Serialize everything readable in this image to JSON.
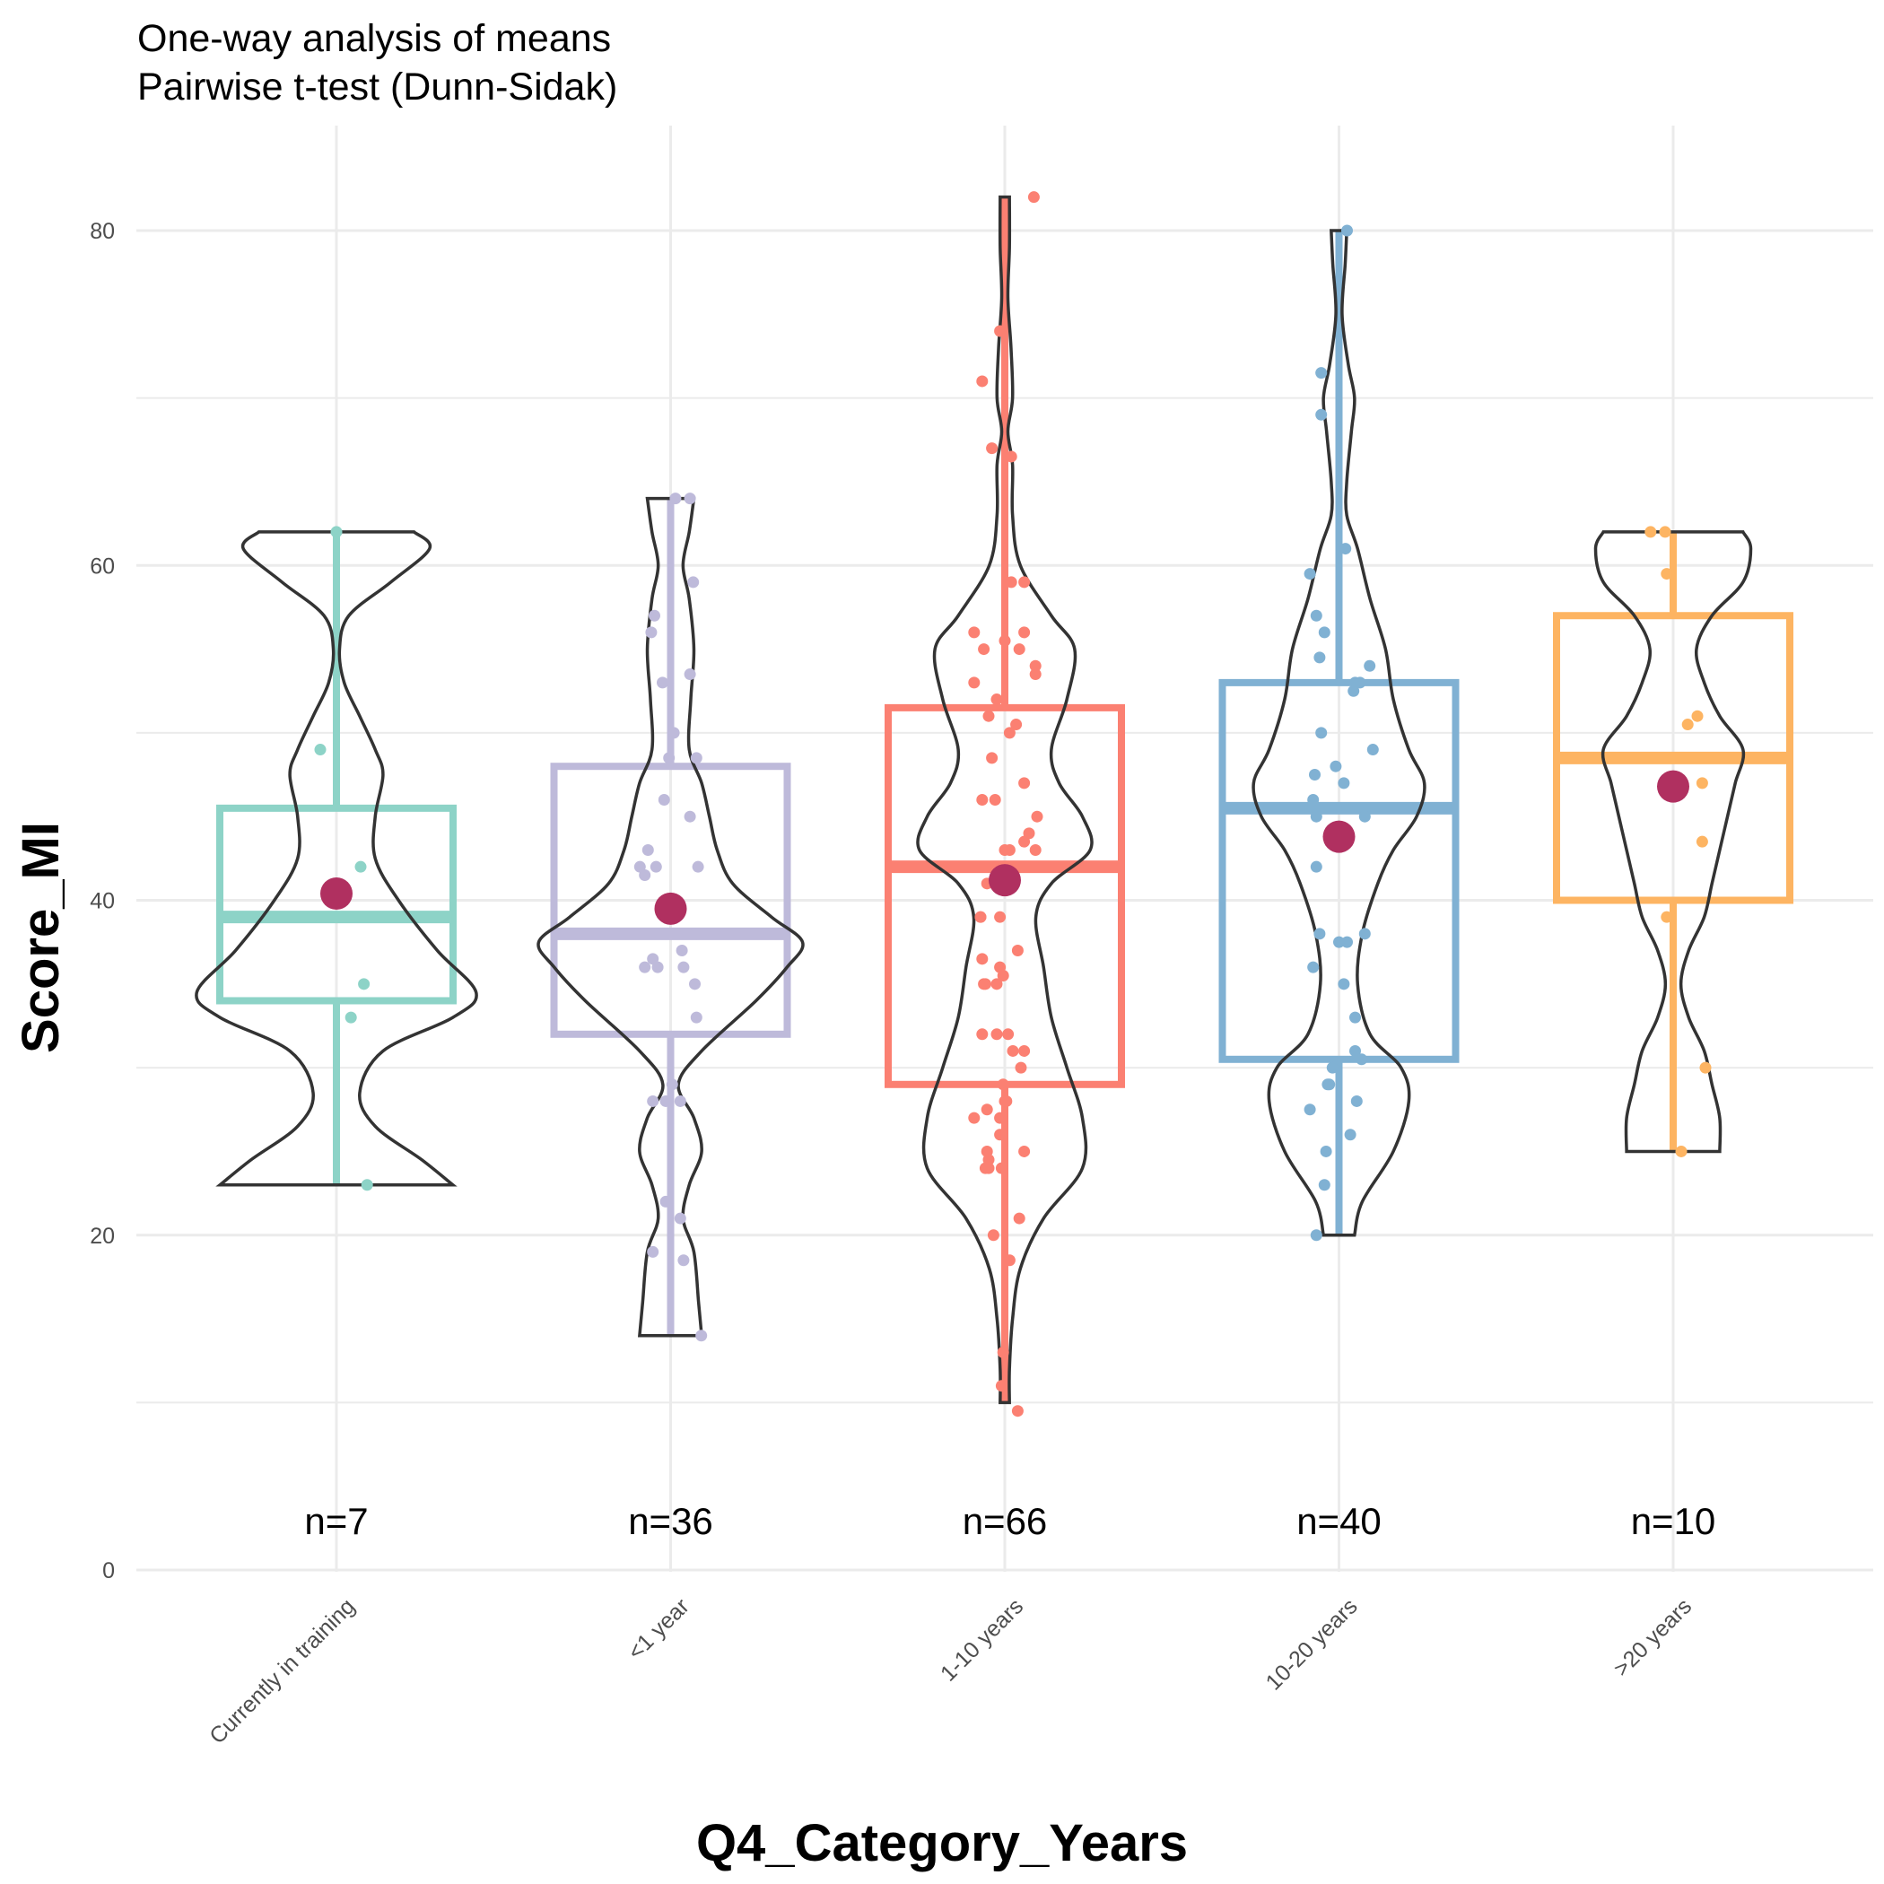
{
  "chart_data": {
    "type": "violin-box",
    "title": "One-way analysis of means",
    "subtitle": "Pairwise t-test (Dunn-Sidak)",
    "xlabel": "Q4_Category_Years",
    "ylabel": "Score_MI",
    "ylim": [
      0,
      85
    ],
    "yticks": [
      "0",
      "20",
      "40",
      "60",
      "80"
    ],
    "grid": true,
    "groups": [
      {
        "category": "Currently in training",
        "n_label": "n=7",
        "color": "#8dd3c7",
        "min": 23,
        "q1": 34,
        "median": 39,
        "q3": 45.5,
        "max": 62,
        "mean": 40.4,
        "violin_range": [
          23,
          62
        ],
        "violin_width": [
          [
            23,
            0.75
          ],
          [
            24.5,
            0.55
          ],
          [
            26.5,
            0.25
          ],
          [
            28.5,
            0.15
          ],
          [
            31,
            0.3
          ],
          [
            33,
            0.75
          ],
          [
            34.5,
            0.9
          ],
          [
            37,
            0.65
          ],
          [
            40,
            0.4
          ],
          [
            42.5,
            0.25
          ],
          [
            45,
            0.25
          ],
          [
            47.5,
            0.3
          ],
          [
            49,
            0.25
          ],
          [
            51,
            0.15
          ],
          [
            53,
            0.05
          ],
          [
            55,
            0.02
          ],
          [
            57,
            0.08
          ],
          [
            59,
            0.35
          ],
          [
            61,
            0.6
          ],
          [
            62,
            0.5
          ]
        ],
        "points": [
          [
            62,
            0.0
          ],
          [
            49,
            -0.1
          ],
          [
            42,
            0.15
          ],
          [
            39,
            -0.15
          ],
          [
            35,
            0.17
          ],
          [
            33,
            0.09
          ],
          [
            23,
            0.19
          ]
        ]
      },
      {
        "category": "<1 year",
        "n_label": "n=36",
        "color": "#bebada",
        "min": 14,
        "q1": 32,
        "median": 38,
        "q3": 48,
        "max": 64,
        "mean": 39.5,
        "violin_range": [
          14,
          64
        ],
        "violin_width": [
          [
            14,
            0.2
          ],
          [
            16,
            0.18
          ],
          [
            19,
            0.15
          ],
          [
            21,
            0.08
          ],
          [
            23,
            0.12
          ],
          [
            25,
            0.2
          ],
          [
            27,
            0.15
          ],
          [
            29,
            0.05
          ],
          [
            31,
            0.2
          ],
          [
            34,
            0.55
          ],
          [
            36,
            0.75
          ],
          [
            37.5,
            0.85
          ],
          [
            39,
            0.65
          ],
          [
            41,
            0.4
          ],
          [
            43,
            0.3
          ],
          [
            45,
            0.25
          ],
          [
            47,
            0.2
          ],
          [
            49,
            0.12
          ],
          [
            52,
            0.13
          ],
          [
            55,
            0.15
          ],
          [
            58,
            0.12
          ],
          [
            60,
            0.08
          ],
          [
            62,
            0.12
          ],
          [
            64,
            0.15
          ]
        ],
        "points": [
          [
            64,
            0.03
          ],
          [
            64,
            0.12
          ],
          [
            59,
            0.14
          ],
          [
            57,
            -0.1
          ],
          [
            56,
            -0.12
          ],
          [
            53,
            -0.05
          ],
          [
            53.5,
            0.12
          ],
          [
            50,
            0.02
          ],
          [
            48.5,
            -0.01
          ],
          [
            48.5,
            0.16
          ],
          [
            46,
            -0.04
          ],
          [
            45,
            0.12
          ],
          [
            43,
            -0.14
          ],
          [
            42,
            -0.19
          ],
          [
            42,
            -0.09
          ],
          [
            41.5,
            -0.16
          ],
          [
            42,
            0.17
          ],
          [
            38,
            0.15
          ],
          [
            38,
            0.18
          ],
          [
            37,
            0.07
          ],
          [
            36.5,
            -0.11
          ],
          [
            36,
            -0.16
          ],
          [
            36,
            0.08
          ],
          [
            35,
            0.15
          ],
          [
            33,
            0.16
          ],
          [
            29,
            0.01
          ],
          [
            28,
            -0.11
          ],
          [
            28,
            -0.03
          ],
          [
            28,
            0.06
          ],
          [
            22,
            -0.03
          ],
          [
            21,
            0.06
          ],
          [
            19,
            -0.11
          ],
          [
            18.5,
            0.08
          ],
          [
            14,
            0.19
          ],
          [
            36,
            -0.08
          ],
          [
            38,
            0.1
          ]
        ]
      },
      {
        "category": "1-10 years",
        "n_label": "n=66",
        "color": "#fb8072",
        "min": 10,
        "q1": 29,
        "median": 42,
        "q3": 51.5,
        "max": 82,
        "mean": 41.2,
        "violin_range": [
          10,
          82
        ],
        "violin_width": [
          [
            10,
            0.03
          ],
          [
            12,
            0.03
          ],
          [
            15,
            0.05
          ],
          [
            18,
            0.1
          ],
          [
            21,
            0.25
          ],
          [
            24,
            0.5
          ],
          [
            27,
            0.5
          ],
          [
            30,
            0.4
          ],
          [
            33,
            0.3
          ],
          [
            36,
            0.25
          ],
          [
            39,
            0.2
          ],
          [
            41,
            0.3
          ],
          [
            43,
            0.55
          ],
          [
            45,
            0.5
          ],
          [
            47,
            0.35
          ],
          [
            49,
            0.3
          ],
          [
            52,
            0.4
          ],
          [
            55,
            0.45
          ],
          [
            57,
            0.3
          ],
          [
            60,
            0.1
          ],
          [
            63,
            0.05
          ],
          [
            66,
            0.05
          ],
          [
            68,
            0.02
          ],
          [
            70,
            0.05
          ],
          [
            73,
            0.04
          ],
          [
            76,
            0.02
          ],
          [
            79,
            0.03
          ],
          [
            82,
            0.03
          ]
        ],
        "points": [
          [
            82,
            0.18
          ],
          [
            74,
            -0.03
          ],
          [
            71,
            -0.14
          ],
          [
            67,
            -0.08
          ],
          [
            66.5,
            0.04
          ],
          [
            59,
            0.12
          ],
          [
            59,
            0.04
          ],
          [
            56,
            -0.19
          ],
          [
            56,
            0.12
          ],
          [
            55,
            -0.13
          ],
          [
            55.5,
            0.0
          ],
          [
            55,
            0.09
          ],
          [
            54,
            0.19
          ],
          [
            53,
            -0.19
          ],
          [
            53.5,
            0.19
          ],
          [
            52,
            -0.05
          ],
          [
            51,
            -0.1
          ],
          [
            50.5,
            0.07
          ],
          [
            50,
            0.03
          ],
          [
            48.5,
            -0.08
          ],
          [
            47,
            0.12
          ],
          [
            46,
            -0.14
          ],
          [
            46,
            -0.06
          ],
          [
            44,
            0.15
          ],
          [
            43.5,
            0.12
          ],
          [
            43,
            0.0
          ],
          [
            43,
            0.03
          ],
          [
            43,
            0.19
          ],
          [
            42,
            -0.01
          ],
          [
            41,
            -0.11
          ],
          [
            39,
            -0.15
          ],
          [
            39,
            -0.03
          ],
          [
            36.5,
            -0.14
          ],
          [
            36,
            -0.03
          ],
          [
            35.5,
            -0.01
          ],
          [
            35,
            -0.13
          ],
          [
            35,
            -0.12
          ],
          [
            35,
            -0.05
          ],
          [
            32,
            -0.14
          ],
          [
            32,
            -0.05
          ],
          [
            32,
            0.02
          ],
          [
            31,
            0.05
          ],
          [
            31,
            0.12
          ],
          [
            30,
            0.1
          ],
          [
            29,
            -0.01
          ],
          [
            28,
            0.0
          ],
          [
            28,
            0.01
          ],
          [
            27.5,
            -0.11
          ],
          [
            27,
            -0.19
          ],
          [
            27,
            -0.03
          ],
          [
            26,
            -0.03
          ],
          [
            25,
            -0.11
          ],
          [
            25,
            0.12
          ],
          [
            24.5,
            -0.1
          ],
          [
            24,
            -0.12
          ],
          [
            24,
            -0.1
          ],
          [
            24,
            -0.02
          ],
          [
            21,
            0.09
          ],
          [
            20,
            -0.07
          ],
          [
            18.5,
            0.03
          ],
          [
            13,
            -0.01
          ],
          [
            11,
            -0.02
          ],
          [
            9.5,
            0.08
          ],
          [
            37,
            0.08
          ],
          [
            39,
            -0.15
          ],
          [
            45,
            0.2
          ]
        ]
      },
      {
        "category": "10-20 years",
        "n_label": "n=40",
        "color": "#80b1d3",
        "min": 20,
        "q1": 30.5,
        "median": 45.5,
        "q3": 53,
        "max": 80,
        "mean": 43.8,
        "violin_range": [
          20,
          80
        ],
        "violin_width": [
          [
            20,
            0.1
          ],
          [
            22,
            0.15
          ],
          [
            25,
            0.35
          ],
          [
            28,
            0.45
          ],
          [
            30,
            0.4
          ],
          [
            32,
            0.2
          ],
          [
            35,
            0.12
          ],
          [
            38,
            0.15
          ],
          [
            41,
            0.25
          ],
          [
            43,
            0.35
          ],
          [
            45,
            0.5
          ],
          [
            47,
            0.55
          ],
          [
            49,
            0.45
          ],
          [
            52,
            0.35
          ],
          [
            55,
            0.3
          ],
          [
            58,
            0.2
          ],
          [
            61,
            0.12
          ],
          [
            63,
            0.05
          ],
          [
            65,
            0.05
          ],
          [
            68,
            0.08
          ],
          [
            70,
            0.1
          ],
          [
            72,
            0.06
          ],
          [
            75,
            0.02
          ],
          [
            78,
            0.04
          ],
          [
            80,
            0.05
          ]
        ],
        "points": [
          [
            80,
            0.05
          ],
          [
            71.5,
            -0.11
          ],
          [
            69,
            -0.11
          ],
          [
            61,
            0.04
          ],
          [
            59.5,
            -0.18
          ],
          [
            57,
            -0.14
          ],
          [
            56,
            -0.09
          ],
          [
            54.5,
            -0.12
          ],
          [
            54,
            0.19
          ],
          [
            53,
            0.1
          ],
          [
            53,
            0.13
          ],
          [
            52.5,
            0.09
          ],
          [
            50,
            -0.11
          ],
          [
            49,
            0.21
          ],
          [
            48,
            -0.02
          ],
          [
            47.5,
            -0.15
          ],
          [
            47,
            0.03
          ],
          [
            46,
            -0.16
          ],
          [
            45.5,
            0.05
          ],
          [
            45,
            -0.14
          ],
          [
            45,
            0.16
          ],
          [
            42,
            -0.14
          ],
          [
            38,
            -0.12
          ],
          [
            37.5,
            0.05
          ],
          [
            38,
            0.16
          ],
          [
            36,
            -0.16
          ],
          [
            35,
            0.03
          ],
          [
            33,
            0.1
          ],
          [
            31,
            0.1
          ],
          [
            30.5,
            0.14
          ],
          [
            30,
            -0.04
          ],
          [
            29,
            -0.07
          ],
          [
            29,
            -0.06
          ],
          [
            28,
            0.11
          ],
          [
            27.5,
            -0.18
          ],
          [
            26,
            0.07
          ],
          [
            25,
            -0.08
          ],
          [
            23,
            -0.09
          ],
          [
            20,
            -0.14
          ],
          [
            37.5,
            0.0
          ]
        ]
      },
      {
        "category": ">20 years",
        "n_label": "n=10",
        "color": "#fdb462",
        "min": 25,
        "q1": 40,
        "median": 48.5,
        "q3": 57,
        "max": 62,
        "mean": 46.8,
        "violin_range": [
          25,
          62
        ],
        "violin_width": [
          [
            25,
            0.3
          ],
          [
            27,
            0.3
          ],
          [
            29,
            0.25
          ],
          [
            31,
            0.2
          ],
          [
            33,
            0.1
          ],
          [
            35,
            0.05
          ],
          [
            37,
            0.1
          ],
          [
            39,
            0.2
          ],
          [
            41,
            0.25
          ],
          [
            43,
            0.3
          ],
          [
            45,
            0.35
          ],
          [
            47,
            0.4
          ],
          [
            49,
            0.45
          ],
          [
            51,
            0.3
          ],
          [
            53,
            0.2
          ],
          [
            55,
            0.15
          ],
          [
            57,
            0.25
          ],
          [
            59,
            0.45
          ],
          [
            61,
            0.5
          ],
          [
            62,
            0.45
          ]
        ],
        "points": [
          [
            62,
            -0.14
          ],
          [
            62,
            -0.05
          ],
          [
            59.5,
            -0.04
          ],
          [
            51,
            0.15
          ],
          [
            50.5,
            0.09
          ],
          [
            47,
            0.18
          ],
          [
            43.5,
            0.18
          ],
          [
            39,
            -0.04
          ],
          [
            30,
            0.2
          ],
          [
            25,
            0.05
          ]
        ]
      }
    ]
  }
}
